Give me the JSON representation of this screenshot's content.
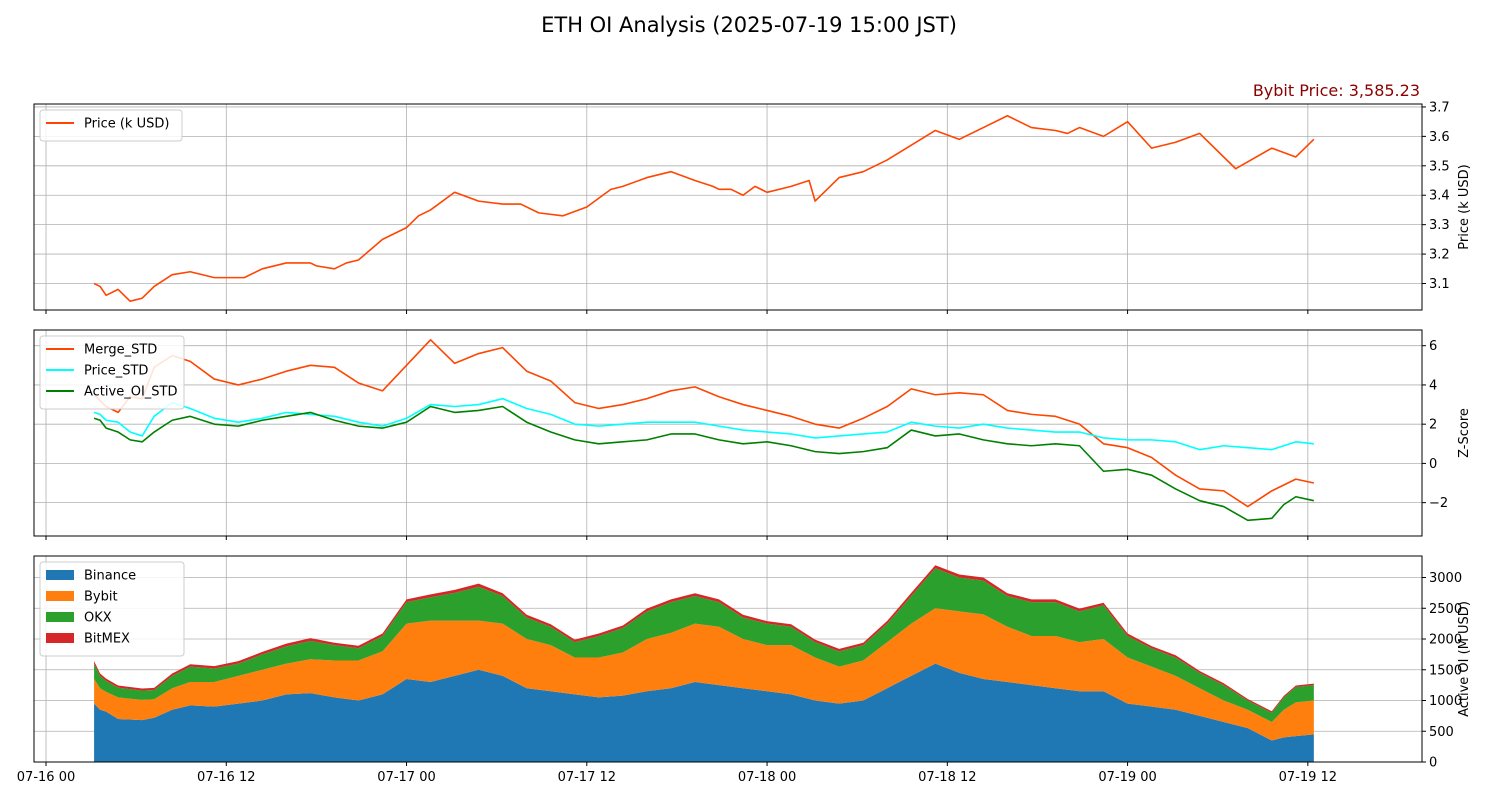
{
  "title": "ETH OI Analysis (2025-07-19 15:00 JST)",
  "price_label": "Bybit Price: 3,585.23",
  "colors": {
    "price": "#ff4500",
    "merge": "#ff4500",
    "price_std": "#00ffff",
    "active_oi_std": "#008000",
    "binance": "#1f77b4",
    "bybit": "#ff7f0e",
    "okx": "#2ca02c",
    "bitmex": "#d62728",
    "price_label": "#8b0000"
  },
  "chart_data": [
    {
      "type": "line",
      "ylabel": "Price (k USD)",
      "ylim": [
        3.01,
        3.71
      ],
      "yticks": [
        "3.1",
        "3.2",
        "3.3",
        "3.4",
        "3.5",
        "3.6",
        "3.7"
      ],
      "ytick_values": [
        3.1,
        3.2,
        3.3,
        3.4,
        3.5,
        3.6,
        3.7
      ],
      "grid": true,
      "legend_position": "top-left",
      "x": [
        8,
        9,
        10,
        12,
        14,
        16,
        18,
        21,
        24,
        28,
        33,
        36,
        40,
        44,
        45,
        48,
        50,
        52,
        56,
        60,
        62,
        64,
        68,
        72,
        76,
        79,
        82,
        86,
        90,
        94,
        96,
        100,
        104,
        108,
        111,
        112,
        114,
        116,
        118,
        120,
        124,
        127,
        128,
        132,
        136,
        140,
        144,
        148,
        152,
        156,
        160,
        164,
        168,
        170,
        172,
        176,
        180,
        184,
        188,
        192,
        198,
        204,
        208,
        211
      ],
      "series": [
        {
          "name": "Price (k USD)",
          "values": [
            3.1,
            3.09,
            3.06,
            3.08,
            3.04,
            3.05,
            3.09,
            3.13,
            3.14,
            3.12,
            3.12,
            3.15,
            3.17,
            3.17,
            3.16,
            3.15,
            3.17,
            3.18,
            3.25,
            3.29,
            3.33,
            3.35,
            3.41,
            3.38,
            3.37,
            3.37,
            3.34,
            3.33,
            3.36,
            3.42,
            3.43,
            3.46,
            3.48,
            3.45,
            3.43,
            3.42,
            3.42,
            3.4,
            3.43,
            3.41,
            3.43,
            3.45,
            3.38,
            3.46,
            3.48,
            3.52,
            3.57,
            3.62,
            3.59,
            3.63,
            3.67,
            3.63,
            3.62,
            3.61,
            3.63,
            3.6,
            3.65,
            3.56,
            3.58,
            3.61,
            3.49,
            3.56,
            3.53,
            3.59
          ]
        }
      ]
    },
    {
      "type": "line",
      "ylabel": "Z-Score",
      "ylim": [
        -3.7,
        6.8
      ],
      "yticks": [
        "−2",
        "0",
        "2",
        "4",
        "6"
      ],
      "ytick_values": [
        -2,
        0,
        2,
        4,
        6
      ],
      "grid": true,
      "legend_position": "top-left",
      "x": [
        8,
        9,
        10,
        12,
        14,
        16,
        18,
        21,
        24,
        28,
        32,
        36,
        40,
        44,
        48,
        52,
        56,
        60,
        64,
        68,
        72,
        76,
        80,
        84,
        88,
        92,
        96,
        100,
        104,
        108,
        112,
        116,
        120,
        124,
        128,
        132,
        136,
        140,
        144,
        148,
        152,
        156,
        160,
        164,
        168,
        172,
        176,
        180,
        184,
        188,
        192,
        196,
        200,
        204,
        206,
        208,
        211
      ],
      "series": [
        {
          "name": "Merge_STD",
          "values": [
            3.5,
            3.2,
            2.9,
            2.6,
            3.4,
            3.3,
            4.9,
            5.5,
            5.2,
            4.3,
            4.0,
            4.3,
            4.7,
            5.0,
            4.9,
            4.1,
            3.7,
            5.0,
            6.3,
            5.1,
            5.6,
            5.9,
            4.7,
            4.2,
            3.1,
            2.8,
            3.0,
            3.3,
            3.7,
            3.9,
            3.4,
            3.0,
            2.7,
            2.4,
            2.0,
            1.8,
            2.3,
            2.9,
            3.8,
            3.5,
            3.6,
            3.5,
            2.7,
            2.5,
            2.4,
            2.0,
            1.0,
            0.8,
            0.3,
            -0.6,
            -1.3,
            -1.4,
            -2.2,
            -1.4,
            -1.1,
            -0.8,
            -1.0
          ]
        },
        {
          "name": "Price_STD",
          "values": [
            2.6,
            2.5,
            2.2,
            2.1,
            1.6,
            1.4,
            2.4,
            3.1,
            2.8,
            2.3,
            2.1,
            2.3,
            2.6,
            2.5,
            2.4,
            2.1,
            1.9,
            2.3,
            3.0,
            2.9,
            3.0,
            3.3,
            2.8,
            2.5,
            2.0,
            1.9,
            2.0,
            2.1,
            2.1,
            2.1,
            1.9,
            1.7,
            1.6,
            1.5,
            1.3,
            1.4,
            1.5,
            1.6,
            2.1,
            1.9,
            1.8,
            2.0,
            1.8,
            1.7,
            1.6,
            1.6,
            1.3,
            1.2,
            1.2,
            1.1,
            0.7,
            0.9,
            0.8,
            0.7,
            0.9,
            1.1,
            1.0
          ]
        },
        {
          "name": "Active_OI_STD",
          "values": [
            2.3,
            2.2,
            1.8,
            1.6,
            1.2,
            1.1,
            1.6,
            2.2,
            2.4,
            2.0,
            1.9,
            2.2,
            2.4,
            2.6,
            2.2,
            1.9,
            1.8,
            2.1,
            2.9,
            2.6,
            2.7,
            2.9,
            2.1,
            1.6,
            1.2,
            1.0,
            1.1,
            1.2,
            1.5,
            1.5,
            1.2,
            1.0,
            1.1,
            0.9,
            0.6,
            0.5,
            0.6,
            0.8,
            1.7,
            1.4,
            1.5,
            1.2,
            1.0,
            0.9,
            1.0,
            0.9,
            -0.4,
            -0.3,
            -0.6,
            -1.3,
            -1.9,
            -2.2,
            -2.9,
            -2.8,
            -2.1,
            -1.7,
            -1.9
          ]
        }
      ]
    },
    {
      "type": "area",
      "stacked": true,
      "ylabel": "Active OI (M USD)",
      "ylim": [
        0,
        3350
      ],
      "yticks": [
        "0",
        "500",
        "1000",
        "1500",
        "2000",
        "2500",
        "3000"
      ],
      "ytick_values": [
        0,
        500,
        1000,
        1500,
        2000,
        2500,
        3000
      ],
      "xlim": [
        -2,
        229
      ],
      "xticks": [
        "07-16 00",
        "07-16 12",
        "07-17 00",
        "07-17 12",
        "07-18 00",
        "07-18 12",
        "07-19 00",
        "07-19 12"
      ],
      "xtick_values": [
        0,
        30,
        60,
        90,
        120,
        150,
        180,
        210
      ],
      "grid": true,
      "legend_position": "top-left",
      "x": [
        8,
        9,
        10,
        12,
        16,
        18,
        21,
        24,
        28,
        32,
        36,
        40,
        44,
        48,
        52,
        56,
        60,
        64,
        68,
        72,
        76,
        80,
        84,
        88,
        92,
        96,
        100,
        104,
        108,
        112,
        116,
        120,
        124,
        128,
        132,
        136,
        140,
        144,
        148,
        152,
        156,
        160,
        164,
        168,
        172,
        176,
        180,
        184,
        188,
        192,
        196,
        200,
        204,
        206,
        208,
        211
      ],
      "series": [
        {
          "name": "Binance",
          "values": [
            950,
            850,
            820,
            700,
            680,
            720,
            850,
            920,
            900,
            950,
            1000,
            1100,
            1120,
            1050,
            1000,
            1100,
            1350,
            1300,
            1400,
            1500,
            1400,
            1200,
            1150,
            1100,
            1050,
            1080,
            1150,
            1200,
            1300,
            1250,
            1200,
            1150,
            1100,
            1000,
            950,
            1000,
            1200,
            1400,
            1600,
            1450,
            1350,
            1300,
            1250,
            1200,
            1150,
            1150,
            950,
            900,
            850,
            750,
            650,
            550,
            350,
            400,
            420,
            450
          ]
        },
        {
          "name": "Bybit",
          "values": [
            400,
            350,
            320,
            350,
            330,
            300,
            350,
            380,
            400,
            450,
            500,
            500,
            550,
            600,
            650,
            700,
            900,
            1000,
            900,
            800,
            850,
            800,
            750,
            600,
            650,
            700,
            850,
            900,
            950,
            950,
            800,
            750,
            800,
            700,
            600,
            650,
            750,
            850,
            900,
            1000,
            1050,
            900,
            800,
            850,
            800,
            850,
            750,
            650,
            550,
            450,
            350,
            300,
            300,
            450,
            550,
            550
          ]
        },
        {
          "name": "OKX",
          "values": [
            250,
            200,
            180,
            160,
            150,
            150,
            200,
            250,
            220,
            200,
            250,
            280,
            300,
            250,
            200,
            250,
            350,
            380,
            450,
            550,
            450,
            350,
            300,
            250,
            350,
            400,
            450,
            500,
            450,
            400,
            350,
            350,
            300,
            250,
            250,
            250,
            300,
            450,
            650,
            550,
            550,
            500,
            550,
            550,
            500,
            550,
            350,
            300,
            300,
            250,
            250,
            150,
            150,
            200,
            250,
            250
          ]
        },
        {
          "name": "BitMEX",
          "values": [
            40,
            40,
            35,
            35,
            35,
            35,
            40,
            40,
            40,
            40,
            40,
            45,
            45,
            40,
            40,
            40,
            45,
            45,
            50,
            50,
            45,
            45,
            40,
            40,
            40,
            40,
            45,
            45,
            45,
            45,
            45,
            40,
            40,
            40,
            40,
            40,
            45,
            50,
            50,
            50,
            50,
            45,
            45,
            45,
            45,
            40,
            40,
            35,
            35,
            30,
            30,
            25,
            25,
            25,
            25,
            25
          ]
        }
      ]
    }
  ]
}
